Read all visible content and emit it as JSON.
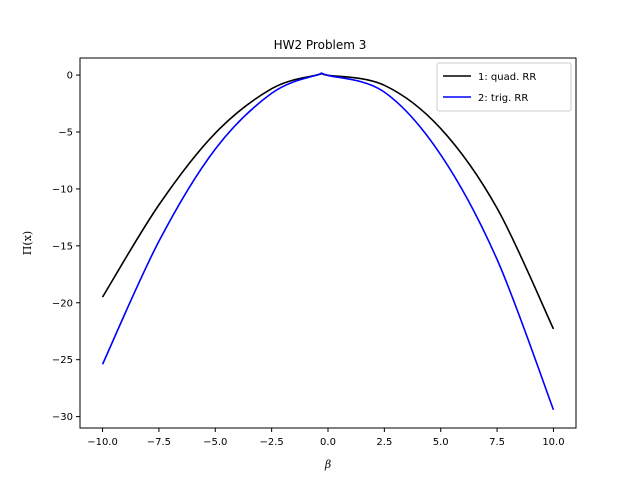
{
  "chart_data": {
    "type": "line",
    "title": "HW2 Problem 3",
    "xlabel": "β",
    "ylabel": "Π(x)",
    "xlim": [
      -11,
      11
    ],
    "ylim": [
      -31,
      1.5
    ],
    "xticks": [
      -10.0,
      -7.5,
      -5.0,
      -2.5,
      0.0,
      2.5,
      5.0,
      7.5,
      10.0
    ],
    "xtick_labels": [
      "−10.0",
      "−7.5",
      "−5.0",
      "−2.5",
      "0.0",
      "2.5",
      "5.0",
      "7.5",
      "10.0"
    ],
    "yticks": [
      0,
      -5,
      -10,
      -15,
      -20,
      -25,
      -30
    ],
    "ytick_labels": [
      "0",
      "−5",
      "−10",
      "−15",
      "−20",
      "−25",
      "−30"
    ],
    "grid": false,
    "legend_position": "top-right",
    "series": [
      {
        "name": "1: quad. RR",
        "color": "#000000",
        "x": [
          -10,
          -7.5,
          -5,
          -2.5,
          -0.5,
          0,
          2.5,
          5,
          7.5,
          10
        ],
        "y": [
          -19.5,
          -11.4,
          -5.1,
          -1.2,
          0.0,
          -0.02,
          -0.9,
          -4.7,
          -11.7,
          -22.3
        ]
      },
      {
        "name": "2: trig. RR",
        "color": "#0000ff",
        "x": [
          -10,
          -7.5,
          -5,
          -2.5,
          -0.5,
          0,
          2.5,
          5,
          7.5,
          10
        ],
        "y": [
          -25.4,
          -14.6,
          -6.5,
          -1.6,
          0.0,
          -0.03,
          -1.5,
          -7.0,
          -16.2,
          -29.4
        ]
      }
    ]
  }
}
